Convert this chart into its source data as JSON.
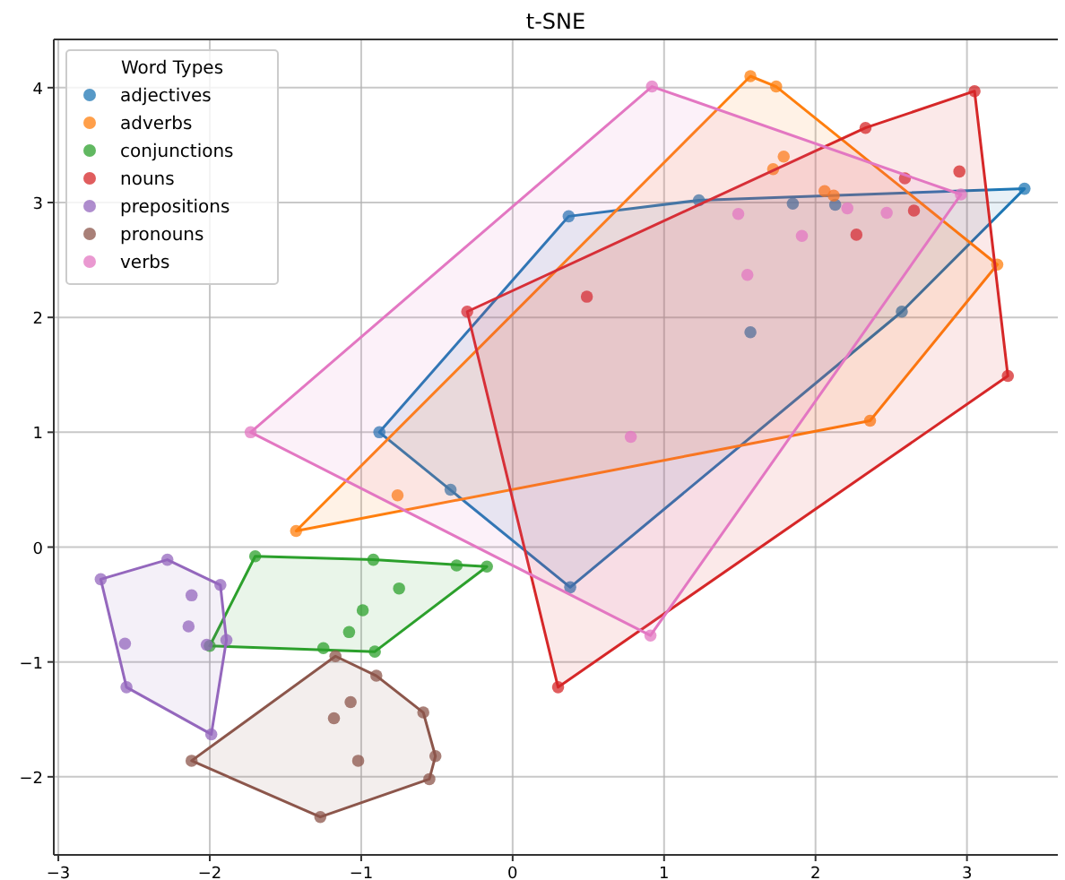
{
  "chart_data": {
    "type": "scatter",
    "title": "t-SNE",
    "legend_title": "Word Types",
    "legend": "top left",
    "grid": true,
    "marker": "circle",
    "xlim": [
      -3.03,
      3.6
    ],
    "ylim": [
      -2.68,
      4.42
    ],
    "xticks": [
      -3,
      -2,
      -1,
      0,
      1,
      2,
      3
    ],
    "yticks": [
      -2,
      -1,
      0,
      1,
      2,
      3,
      4
    ],
    "series": [
      {
        "name": "adjectives",
        "color": "#1f77b4",
        "x": [
          -0.88,
          -0.41,
          0.38,
          0.37,
          1.23,
          1.85,
          2.13,
          1.57,
          2.57,
          3.38
        ],
        "values": [
          1.0,
          0.5,
          -0.35,
          2.88,
          3.02,
          2.99,
          2.98,
          1.87,
          2.05,
          3.12
        ]
      },
      {
        "name": "adverbs",
        "color": "#ff7f0e",
        "x": [
          -1.43,
          -0.76,
          1.57,
          1.74,
          1.79,
          1.72,
          2.06,
          2.12,
          3.2,
          2.36
        ],
        "values": [
          0.14,
          0.45,
          4.1,
          4.01,
          3.4,
          3.29,
          3.1,
          3.06,
          2.46,
          1.1
        ]
      },
      {
        "name": "conjunctions",
        "color": "#2ca02c",
        "x": [
          -1.7,
          -0.92,
          -0.37,
          -0.17,
          -0.75,
          -0.99,
          -1.08,
          -1.25,
          -0.91,
          -2.0
        ],
        "values": [
          -0.08,
          -0.11,
          -0.16,
          -0.17,
          -0.36,
          -0.55,
          -0.74,
          -0.88,
          -0.91,
          -0.86
        ]
      },
      {
        "name": "nouns",
        "color": "#d62728",
        "x": [
          -0.3,
          2.33,
          3.05,
          2.59,
          2.95,
          2.65,
          2.27,
          0.49,
          3.27,
          0.3
        ],
        "values": [
          2.05,
          3.65,
          3.97,
          3.21,
          3.27,
          2.93,
          2.72,
          2.18,
          1.49,
          -1.22
        ]
      },
      {
        "name": "prepositions",
        "color": "#9467bd",
        "x": [
          -2.72,
          -2.28,
          -1.93,
          -2.12,
          -2.14,
          -1.89,
          -2.02,
          -2.56,
          -2.55,
          -1.99
        ],
        "values": [
          -0.28,
          -0.11,
          -0.33,
          -0.42,
          -0.69,
          -0.81,
          -0.85,
          -0.84,
          -1.22,
          -1.63
        ]
      },
      {
        "name": "pronouns",
        "color": "#8c564b",
        "x": [
          -1.17,
          -0.9,
          -1.07,
          -1.18,
          -0.59,
          -0.51,
          -0.55,
          -1.02,
          -1.27,
          -2.12
        ],
        "values": [
          -0.95,
          -1.12,
          -1.35,
          -1.49,
          -1.44,
          -1.82,
          -2.02,
          -1.86,
          -2.35,
          -1.86
        ]
      },
      {
        "name": "verbs",
        "color": "#e377c2",
        "x": [
          -1.73,
          0.92,
          2.96,
          2.21,
          2.47,
          1.49,
          1.91,
          1.55,
          0.78,
          0.91
        ],
        "values": [
          1.0,
          4.01,
          3.07,
          2.95,
          2.91,
          2.9,
          2.71,
          2.37,
          0.96,
          -0.77
        ]
      }
    ]
  }
}
